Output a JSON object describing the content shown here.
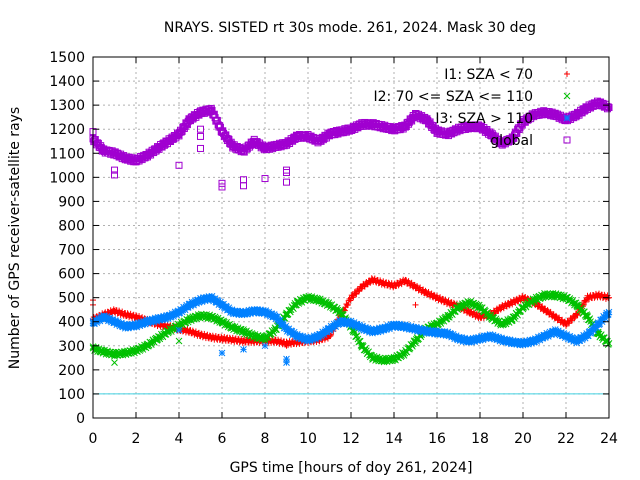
{
  "chart_data": {
    "type": "scatter",
    "title": "NRAYS. SISTED rt 30s mode. 261, 2024. Mask 30 deg",
    "xlabel": "GPS time [hours of doy 261, 2024]",
    "ylabel": "Number of GPS receiver-satellite rays",
    "xlim": [
      0,
      24
    ],
    "ylim": [
      0,
      1500
    ],
    "x_ticks": [
      "0",
      "2",
      "4",
      "6",
      "8",
      "10",
      "12",
      "14",
      "16",
      "18",
      "20",
      "22",
      "24"
    ],
    "y_ticks": [
      "0",
      "100",
      "200",
      "300",
      "400",
      "500",
      "600",
      "700",
      "800",
      "900",
      "1000",
      "1100",
      "1200",
      "1300",
      "1400",
      "1500"
    ],
    "grid": true,
    "legend_position": "top-right",
    "series": [
      {
        "name": "I1: SZA < 70",
        "marker": "+",
        "color": "#ff0000",
        "points": [
          [
            0,
            410
          ],
          [
            0.5,
            430
          ],
          [
            1,
            445
          ],
          [
            1.5,
            430
          ],
          [
            2,
            420
          ],
          [
            2.5,
            405
          ],
          [
            3,
            390
          ],
          [
            3.5,
            380
          ],
          [
            4,
            370
          ],
          [
            4.5,
            360
          ],
          [
            5,
            345
          ],
          [
            5.5,
            335
          ],
          [
            6,
            330
          ],
          [
            6.5,
            325
          ],
          [
            7,
            320
          ],
          [
            7.5,
            320
          ],
          [
            8,
            320
          ],
          [
            8.5,
            320
          ],
          [
            9,
            310
          ],
          [
            9.5,
            315
          ],
          [
            10,
            320
          ],
          [
            10.5,
            325
          ],
          [
            11,
            340
          ],
          [
            11.5,
            420
          ],
          [
            12,
            500
          ],
          [
            12.5,
            545
          ],
          [
            13,
            575
          ],
          [
            13.5,
            560
          ],
          [
            14,
            550
          ],
          [
            14.5,
            570
          ],
          [
            15,
            545
          ],
          [
            15.5,
            520
          ],
          [
            16,
            500
          ],
          [
            16.5,
            480
          ],
          [
            17,
            465
          ],
          [
            17.5,
            440
          ],
          [
            18,
            420
          ],
          [
            18.5,
            430
          ],
          [
            19,
            460
          ],
          [
            19.5,
            480
          ],
          [
            20,
            500
          ],
          [
            20.5,
            480
          ],
          [
            21,
            450
          ],
          [
            21.5,
            420
          ],
          [
            22,
            390
          ],
          [
            22.5,
            430
          ],
          [
            23,
            500
          ],
          [
            23.5,
            510
          ],
          [
            24,
            500
          ]
        ],
        "outliers": [
          [
            0,
            490
          ],
          [
            0,
            470
          ],
          [
            4,
            375
          ],
          [
            9,
            300
          ],
          [
            15,
            470
          ]
        ]
      },
      {
        "name": "I2: 70 <= SZA <= 110",
        "marker": "x",
        "color": "#00c000",
        "points": [
          [
            0,
            290
          ],
          [
            0.5,
            275
          ],
          [
            1,
            265
          ],
          [
            1.5,
            270
          ],
          [
            2,
            280
          ],
          [
            2.5,
            300
          ],
          [
            3,
            330
          ],
          [
            3.5,
            360
          ],
          [
            4,
            385
          ],
          [
            4.5,
            410
          ],
          [
            5,
            425
          ],
          [
            5.5,
            420
          ],
          [
            6,
            400
          ],
          [
            6.5,
            375
          ],
          [
            7,
            360
          ],
          [
            7.5,
            340
          ],
          [
            8,
            330
          ],
          [
            8.5,
            370
          ],
          [
            9,
            430
          ],
          [
            9.5,
            480
          ],
          [
            10,
            500
          ],
          [
            10.5,
            490
          ],
          [
            11,
            470
          ],
          [
            11.5,
            440
          ],
          [
            12,
            380
          ],
          [
            12.5,
            300
          ],
          [
            13,
            250
          ],
          [
            13.5,
            240
          ],
          [
            14,
            245
          ],
          [
            14.5,
            270
          ],
          [
            15,
            320
          ],
          [
            15.5,
            370
          ],
          [
            16,
            390
          ],
          [
            16.5,
            420
          ],
          [
            17,
            460
          ],
          [
            17.5,
            480
          ],
          [
            18,
            460
          ],
          [
            18.5,
            420
          ],
          [
            19,
            390
          ],
          [
            19.5,
            410
          ],
          [
            20,
            460
          ],
          [
            20.5,
            490
          ],
          [
            21,
            510
          ],
          [
            21.5,
            510
          ],
          [
            22,
            500
          ],
          [
            22.5,
            470
          ],
          [
            23,
            420
          ],
          [
            23.5,
            350
          ],
          [
            24,
            310
          ]
        ],
        "outliers": [
          [
            1,
            230
          ],
          [
            4,
            320
          ]
        ]
      },
      {
        "name": "I3: SZA > 110",
        "marker": "*",
        "color": "#0080ff",
        "points": [
          [
            0,
            395
          ],
          [
            0.5,
            420
          ],
          [
            1,
            400
          ],
          [
            1.5,
            380
          ],
          [
            2,
            385
          ],
          [
            2.5,
            400
          ],
          [
            3,
            410
          ],
          [
            3.5,
            420
          ],
          [
            4,
            440
          ],
          [
            4.5,
            470
          ],
          [
            5,
            490
          ],
          [
            5.5,
            500
          ],
          [
            6,
            470
          ],
          [
            6.5,
            440
          ],
          [
            7,
            435
          ],
          [
            7.5,
            445
          ],
          [
            8,
            440
          ],
          [
            8.5,
            420
          ],
          [
            9,
            370
          ],
          [
            9.5,
            340
          ],
          [
            10,
            325
          ],
          [
            10.5,
            340
          ],
          [
            11,
            370
          ],
          [
            11.5,
            400
          ],
          [
            12,
            395
          ],
          [
            12.5,
            375
          ],
          [
            13,
            360
          ],
          [
            13.5,
            370
          ],
          [
            14,
            385
          ],
          [
            14.5,
            380
          ],
          [
            15,
            370
          ],
          [
            15.5,
            360
          ],
          [
            16,
            355
          ],
          [
            16.5,
            350
          ],
          [
            17,
            330
          ],
          [
            17.5,
            320
          ],
          [
            18,
            330
          ],
          [
            18.5,
            340
          ],
          [
            19,
            325
          ],
          [
            19.5,
            315
          ],
          [
            20,
            310
          ],
          [
            20.5,
            320
          ],
          [
            21,
            340
          ],
          [
            21.5,
            360
          ],
          [
            22,
            340
          ],
          [
            22.5,
            320
          ],
          [
            23,
            345
          ],
          [
            23.5,
            390
          ],
          [
            24,
            440
          ]
        ],
        "outliers": [
          [
            6,
            270
          ],
          [
            7,
            285
          ],
          [
            8,
            300
          ],
          [
            9,
            230
          ],
          [
            9,
            245
          ],
          [
            4,
            365
          ]
        ]
      },
      {
        "name": "global",
        "marker": "square",
        "color": "#a000d0",
        "points": [
          [
            0,
            1160
          ],
          [
            0.5,
            1110
          ],
          [
            1,
            1100
          ],
          [
            1.5,
            1080
          ],
          [
            2,
            1070
          ],
          [
            2.5,
            1090
          ],
          [
            3,
            1120
          ],
          [
            3.5,
            1150
          ],
          [
            4,
            1180
          ],
          [
            4.5,
            1240
          ],
          [
            5,
            1270
          ],
          [
            5.5,
            1280
          ],
          [
            6,
            1190
          ],
          [
            6.5,
            1130
          ],
          [
            7,
            1110
          ],
          [
            7.5,
            1150
          ],
          [
            8,
            1120
          ],
          [
            8.5,
            1130
          ],
          [
            9,
            1140
          ],
          [
            9.5,
            1170
          ],
          [
            10,
            1170
          ],
          [
            10.5,
            1150
          ],
          [
            11,
            1180
          ],
          [
            11.5,
            1190
          ],
          [
            12,
            1200
          ],
          [
            12.5,
            1220
          ],
          [
            13,
            1220
          ],
          [
            13.5,
            1210
          ],
          [
            14,
            1200
          ],
          [
            14.5,
            1210
          ],
          [
            15,
            1260
          ],
          [
            15.5,
            1240
          ],
          [
            16,
            1190
          ],
          [
            16.5,
            1180
          ],
          [
            17,
            1200
          ],
          [
            17.5,
            1210
          ],
          [
            18,
            1210
          ],
          [
            18.5,
            1180
          ],
          [
            19,
            1140
          ],
          [
            19.5,
            1160
          ],
          [
            20,
            1230
          ],
          [
            20.5,
            1260
          ],
          [
            21,
            1270
          ],
          [
            21.5,
            1260
          ],
          [
            22,
            1240
          ],
          [
            22.5,
            1260
          ],
          [
            23,
            1290
          ],
          [
            23.5,
            1310
          ],
          [
            24,
            1290
          ]
        ],
        "outliers": [
          [
            0,
            1190
          ],
          [
            1,
            1030
          ],
          [
            1,
            1010
          ],
          [
            4,
            1050
          ],
          [
            5,
            1200
          ],
          [
            5,
            1170
          ],
          [
            5,
            1120
          ],
          [
            6,
            975
          ],
          [
            6,
            960
          ],
          [
            7,
            990
          ],
          [
            7,
            965
          ],
          [
            8,
            995
          ],
          [
            9,
            1020
          ],
          [
            9,
            980
          ],
          [
            9,
            1030
          ]
        ]
      }
    ],
    "reference_line": {
      "y": 100,
      "color": "#40d0e0"
    }
  }
}
